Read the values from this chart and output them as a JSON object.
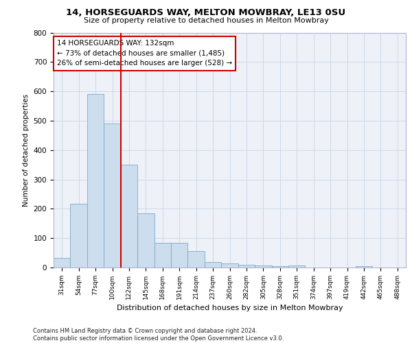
{
  "title1": "14, HORSEGUARDS WAY, MELTON MOWBRAY, LE13 0SU",
  "title2": "Size of property relative to detached houses in Melton Mowbray",
  "xlabel": "Distribution of detached houses by size in Melton Mowbray",
  "ylabel": "Number of detached properties",
  "footnote": "Contains HM Land Registry data © Crown copyright and database right 2024.\nContains public sector information licensed under the Open Government Licence v3.0.",
  "categories": [
    "31sqm",
    "54sqm",
    "77sqm",
    "100sqm",
    "122sqm",
    "145sqm",
    "168sqm",
    "191sqm",
    "214sqm",
    "237sqm",
    "260sqm",
    "282sqm",
    "305sqm",
    "328sqm",
    "351sqm",
    "374sqm",
    "397sqm",
    "419sqm",
    "442sqm",
    "465sqm",
    "488sqm"
  ],
  "values": [
    32,
    217,
    590,
    490,
    350,
    185,
    83,
    83,
    57,
    18,
    15,
    10,
    7,
    5,
    8,
    0,
    0,
    0,
    5,
    0,
    0
  ],
  "bar_color": "#ccdded",
  "bar_edge_color": "#7aaac8",
  "vline_color": "#cc0000",
  "vline_pos": 3.5,
  "ylim": [
    0,
    800
  ],
  "yticks": [
    0,
    100,
    200,
    300,
    400,
    500,
    600,
    700,
    800
  ],
  "annotation_text": "14 HORSEGUARDS WAY: 132sqm\n← 73% of detached houses are smaller (1,485)\n26% of semi-detached houses are larger (528) →",
  "annotation_box_color": "#ffffff",
  "annotation_box_edge": "#cc0000",
  "grid_color": "#ccd8e8",
  "bg_color": "#eef2f8"
}
